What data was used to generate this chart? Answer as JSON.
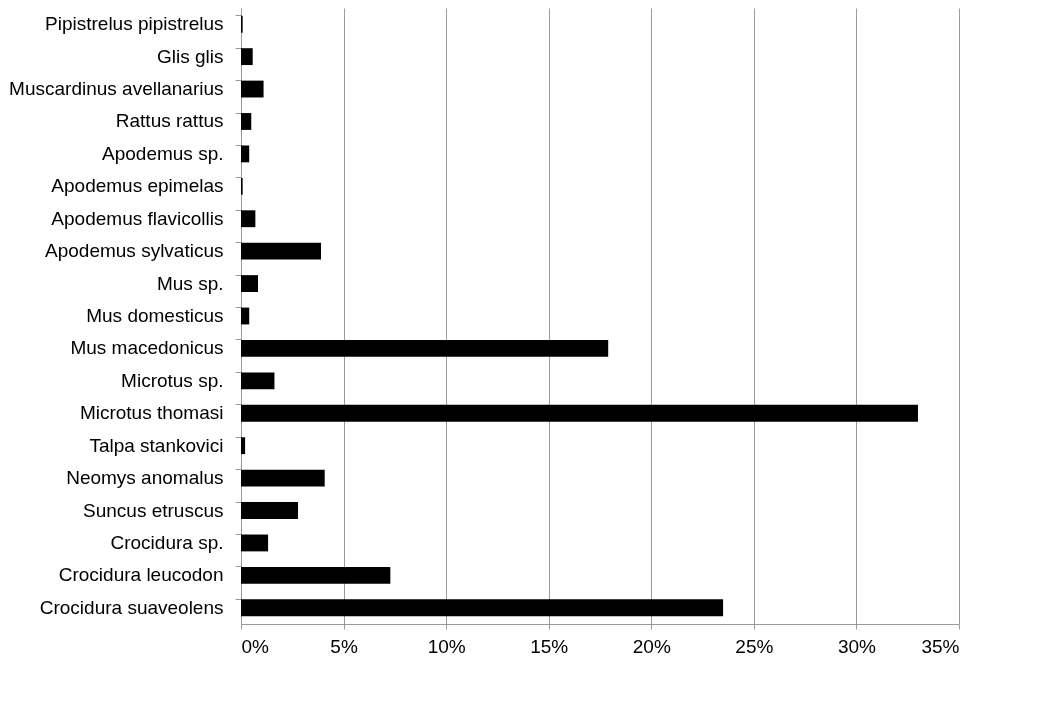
{
  "chart_data": {
    "type": "bar",
    "orientation": "horizontal",
    "categories": [
      "Pipistrelus pipistrelus",
      "Glis glis",
      "Muscardinus avellanarius",
      "Rattus rattus",
      "Apodemus sp.",
      "Apodemus epimelas",
      "Apodemus flavicollis",
      "Apodemus sylvaticus",
      "Mus sp.",
      "Mus domesticus",
      "Mus macedonicus",
      "Microtus sp.",
      "Microtus thomasi",
      "Talpa stankovici",
      "Neomys anomalus",
      "Suncus etruscus",
      "Crocidura sp.",
      "Crocidura leucodon",
      "Crocidura suaveolens"
    ],
    "values": [
      0.08,
      0.57,
      1.1,
      0.5,
      0.4,
      0.08,
      0.7,
      3.9,
      0.83,
      0.4,
      17.9,
      1.63,
      33.0,
      0.2,
      4.08,
      2.78,
      1.32,
      7.28,
      23.5
    ],
    "color": "#000000",
    "xlim": [
      0,
      35
    ],
    "xticks": [
      {
        "value": 0,
        "label": "0%"
      },
      {
        "value": 5,
        "label": "5%"
      },
      {
        "value": 10,
        "label": "10%"
      },
      {
        "value": 15,
        "label": "15%"
      },
      {
        "value": 20,
        "label": "20%"
      },
      {
        "value": 25,
        "label": "25%"
      },
      {
        "value": 30,
        "label": "30%"
      },
      {
        "value": 35,
        "label": "35%"
      }
    ],
    "grid": "x"
  }
}
